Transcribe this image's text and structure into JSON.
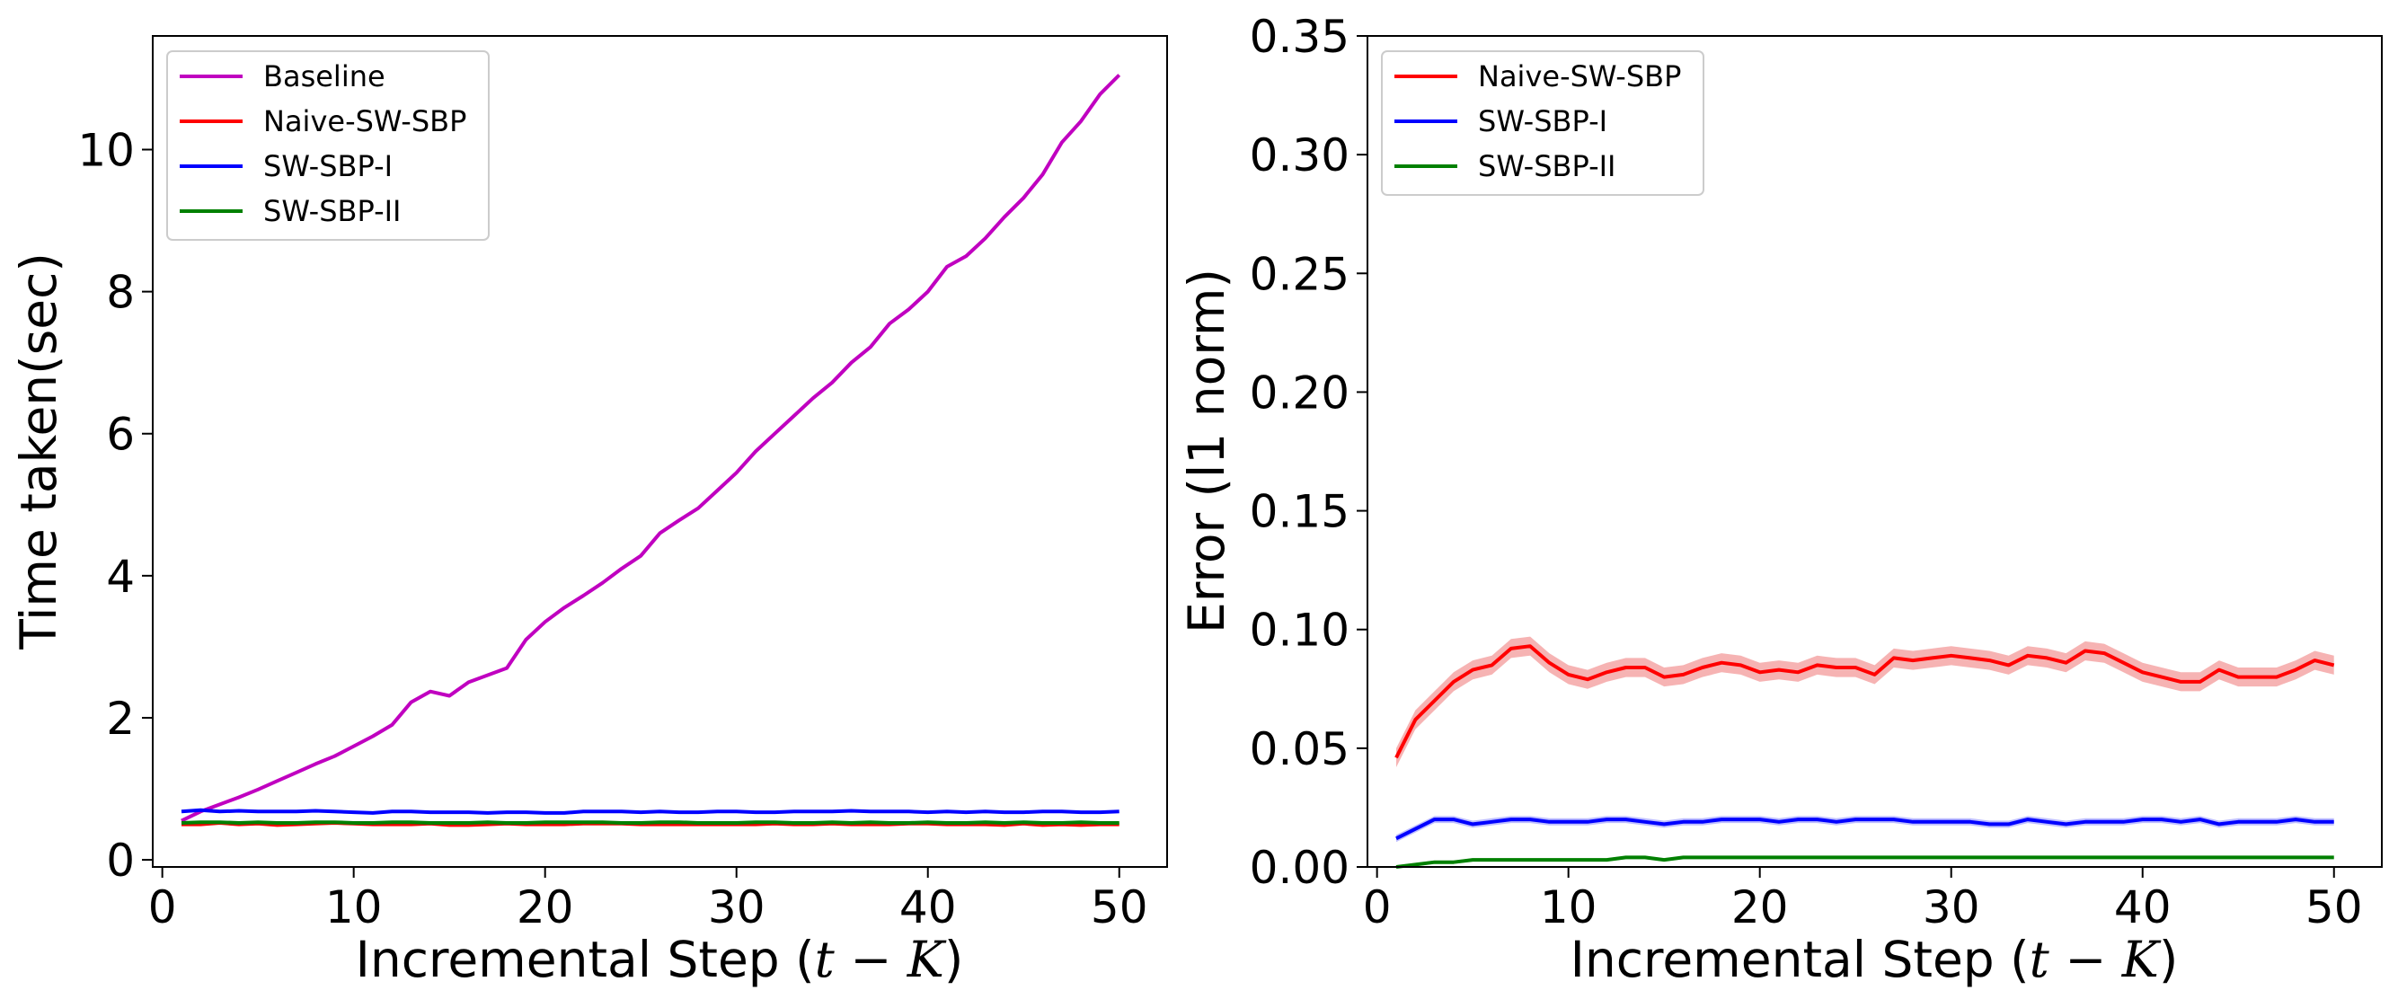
{
  "figure": {
    "colors": {
      "baseline": "#c000c0",
      "naive": "#ff0000",
      "swsbp1": "#0000ff",
      "swsbp2": "#008000",
      "naive_band": "#f08080"
    }
  },
  "chart_data": [
    {
      "type": "line",
      "xlabel_prefix": "Incremental Step (",
      "xlabel_math": "t − K",
      "xlabel_suffix": ")",
      "ylabel": "Time taken(sec)",
      "xlim": [
        -0.5,
        52.5
      ],
      "ylim": [
        -0.1,
        11.6
      ],
      "xticks": [
        0,
        10,
        20,
        30,
        40,
        50
      ],
      "yticks": [
        0,
        2,
        4,
        6,
        8,
        10
      ],
      "grid": false,
      "legend_position": "top-left",
      "x": [
        1,
        2,
        3,
        4,
        5,
        6,
        7,
        8,
        9,
        10,
        11,
        12,
        13,
        14,
        15,
        16,
        17,
        18,
        19,
        20,
        21,
        22,
        23,
        24,
        25,
        26,
        27,
        28,
        29,
        30,
        31,
        32,
        33,
        34,
        35,
        36,
        37,
        38,
        39,
        40,
        41,
        42,
        43,
        44,
        45,
        46,
        47,
        48,
        49,
        50
      ],
      "series": [
        {
          "name": "Baseline",
          "color_key": "baseline",
          "values": [
            0.55,
            0.68,
            0.78,
            0.88,
            0.99,
            1.11,
            1.23,
            1.35,
            1.46,
            1.6,
            1.74,
            1.9,
            2.22,
            2.37,
            2.31,
            2.5,
            2.6,
            2.7,
            3.1,
            3.35,
            3.55,
            3.72,
            3.9,
            4.1,
            4.28,
            4.6,
            4.78,
            4.95,
            5.2,
            5.45,
            5.75,
            6.0,
            6.25,
            6.5,
            6.72,
            7.0,
            7.22,
            7.55,
            7.75,
            8.0,
            8.35,
            8.5,
            8.75,
            9.05,
            9.32,
            9.65,
            10.1,
            10.4,
            10.78,
            11.05
          ]
        },
        {
          "name": "Naive-SW-SBP",
          "color_key": "naive",
          "values": [
            0.5,
            0.5,
            0.52,
            0.5,
            0.51,
            0.49,
            0.5,
            0.51,
            0.52,
            0.51,
            0.5,
            0.5,
            0.5,
            0.51,
            0.49,
            0.49,
            0.5,
            0.51,
            0.5,
            0.5,
            0.5,
            0.51,
            0.51,
            0.51,
            0.5,
            0.5,
            0.5,
            0.5,
            0.5,
            0.5,
            0.5,
            0.51,
            0.5,
            0.5,
            0.51,
            0.5,
            0.5,
            0.5,
            0.51,
            0.51,
            0.5,
            0.5,
            0.5,
            0.49,
            0.51,
            0.49,
            0.5,
            0.49,
            0.5,
            0.5
          ]
        },
        {
          "name": "SW-SBP-I",
          "color_key": "swsbp1",
          "values": [
            0.68,
            0.7,
            0.68,
            0.69,
            0.68,
            0.68,
            0.68,
            0.69,
            0.68,
            0.67,
            0.66,
            0.68,
            0.68,
            0.67,
            0.67,
            0.67,
            0.66,
            0.67,
            0.67,
            0.66,
            0.66,
            0.68,
            0.68,
            0.68,
            0.67,
            0.68,
            0.67,
            0.67,
            0.68,
            0.68,
            0.67,
            0.67,
            0.68,
            0.68,
            0.68,
            0.69,
            0.68,
            0.68,
            0.68,
            0.67,
            0.68,
            0.67,
            0.68,
            0.67,
            0.67,
            0.68,
            0.68,
            0.67,
            0.67,
            0.68
          ]
        },
        {
          "name": "SW-SBP-II",
          "color_key": "swsbp2",
          "values": [
            0.52,
            0.53,
            0.53,
            0.52,
            0.53,
            0.52,
            0.52,
            0.53,
            0.53,
            0.52,
            0.52,
            0.53,
            0.53,
            0.52,
            0.52,
            0.52,
            0.53,
            0.52,
            0.52,
            0.53,
            0.53,
            0.53,
            0.53,
            0.52,
            0.52,
            0.53,
            0.53,
            0.52,
            0.52,
            0.52,
            0.53,
            0.53,
            0.52,
            0.52,
            0.53,
            0.52,
            0.53,
            0.52,
            0.52,
            0.53,
            0.52,
            0.52,
            0.53,
            0.52,
            0.53,
            0.52,
            0.52,
            0.53,
            0.52,
            0.52
          ]
        }
      ]
    },
    {
      "type": "line",
      "xlabel_prefix": "Incremental Step (",
      "xlabel_math": "t − K",
      "xlabel_suffix": ")",
      "ylabel": "Error (l1 norm)",
      "xlim": [
        -0.5,
        52.5
      ],
      "ylim": [
        0.0,
        0.35
      ],
      "xticks": [
        0,
        10,
        20,
        30,
        40,
        50
      ],
      "yticks": [
        "0.00",
        "0.05",
        "0.10",
        "0.15",
        "0.20",
        "0.25",
        "0.30",
        "0.35"
      ],
      "grid": false,
      "legend_position": "top-left",
      "x": [
        1,
        2,
        3,
        4,
        5,
        6,
        7,
        8,
        9,
        10,
        11,
        12,
        13,
        14,
        15,
        16,
        17,
        18,
        19,
        20,
        21,
        22,
        23,
        24,
        25,
        26,
        27,
        28,
        29,
        30,
        31,
        32,
        33,
        34,
        35,
        36,
        37,
        38,
        39,
        40,
        41,
        42,
        43,
        44,
        45,
        46,
        47,
        48,
        49,
        50
      ],
      "series": [
        {
          "name": "Naive-SW-SBP",
          "color_key": "naive",
          "band_color_key": "naive_band",
          "band_halfwidth": 0.004,
          "values": [
            0.046,
            0.062,
            0.07,
            0.078,
            0.083,
            0.085,
            0.092,
            0.093,
            0.086,
            0.081,
            0.079,
            0.082,
            0.084,
            0.084,
            0.08,
            0.081,
            0.084,
            0.086,
            0.085,
            0.082,
            0.083,
            0.082,
            0.085,
            0.084,
            0.084,
            0.081,
            0.088,
            0.087,
            0.088,
            0.089,
            0.088,
            0.087,
            0.085,
            0.089,
            0.088,
            0.086,
            0.091,
            0.09,
            0.086,
            0.082,
            0.08,
            0.078,
            0.078,
            0.083,
            0.08,
            0.08,
            0.08,
            0.083,
            0.087,
            0.085
          ]
        },
        {
          "name": "SW-SBP-I",
          "color_key": "swsbp1",
          "band_color_key": "swsbp1",
          "band_halfwidth": 0.0015,
          "values": [
            0.012,
            0.016,
            0.02,
            0.02,
            0.018,
            0.019,
            0.02,
            0.02,
            0.019,
            0.019,
            0.019,
            0.02,
            0.02,
            0.019,
            0.018,
            0.019,
            0.019,
            0.02,
            0.02,
            0.02,
            0.019,
            0.02,
            0.02,
            0.019,
            0.02,
            0.02,
            0.02,
            0.019,
            0.019,
            0.019,
            0.019,
            0.018,
            0.018,
            0.02,
            0.019,
            0.018,
            0.019,
            0.019,
            0.019,
            0.02,
            0.02,
            0.019,
            0.02,
            0.018,
            0.019,
            0.019,
            0.019,
            0.02,
            0.019,
            0.019
          ]
        },
        {
          "name": "SW-SBP-II",
          "color_key": "swsbp2",
          "band_color_key": "swsbp2",
          "band_halfwidth": 0.0007,
          "values": [
            0.0,
            0.001,
            0.002,
            0.002,
            0.003,
            0.003,
            0.003,
            0.003,
            0.003,
            0.003,
            0.003,
            0.003,
            0.004,
            0.004,
            0.003,
            0.004,
            0.004,
            0.004,
            0.004,
            0.004,
            0.004,
            0.004,
            0.004,
            0.004,
            0.004,
            0.004,
            0.004,
            0.004,
            0.004,
            0.004,
            0.004,
            0.004,
            0.004,
            0.004,
            0.004,
            0.004,
            0.004,
            0.004,
            0.004,
            0.004,
            0.004,
            0.004,
            0.004,
            0.004,
            0.004,
            0.004,
            0.004,
            0.004,
            0.004,
            0.004
          ]
        }
      ]
    }
  ]
}
